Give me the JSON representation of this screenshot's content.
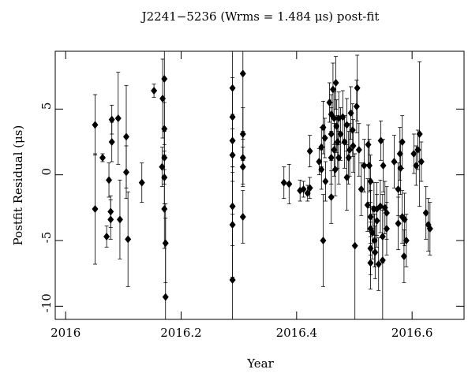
{
  "chart_data": {
    "type": "errorbar-scatter",
    "title": "J2241−5236 (Wrms = 1.484 μs) post-fit",
    "xlabel": "Year",
    "ylabel": "Postfit Residual (μs)",
    "xlim": [
      2015.982,
      2016.69
    ],
    "ylim": [
      -11.0,
      9.4
    ],
    "xticks": [
      2016,
      2016.2,
      2016.4,
      2016.6
    ],
    "yticks": [
      -10,
      -5,
      0,
      5
    ],
    "color": "#000000",
    "x": [
      2016.051,
      2016.051,
      2016.064,
      2016.071,
      2016.075,
      2016.078,
      2016.078,
      2016.08,
      2016.08,
      2016.091,
      2016.094,
      2016.105,
      2016.105,
      2016.108,
      2016.132,
      2016.153,
      2016.167,
      2016.168,
      2016.171,
      2016.171,
      2016.171,
      2016.171,
      2016.171,
      2016.173,
      2016.173,
      2016.289,
      2016.289,
      2016.289,
      2016.289,
      2016.289,
      2016.289,
      2016.289,
      2016.307,
      2016.307,
      2016.307,
      2016.307,
      2016.307,
      2016.378,
      2016.387,
      2016.406,
      2016.412,
      2016.419,
      2016.423,
      2016.423,
      2016.439,
      2016.443,
      2016.443,
      2016.446,
      2016.446,
      2016.449,
      2016.45,
      2016.457,
      2016.46,
      2016.46,
      2016.46,
      2016.46,
      2016.463,
      2016.465,
      2016.465,
      2016.467,
      2016.468,
      2016.469,
      2016.471,
      2016.473,
      2016.473,
      2016.476,
      2016.48,
      2016.483,
      2016.487,
      2016.487,
      2016.49,
      2016.492,
      2016.494,
      2016.497,
      2016.498,
      2016.501,
      2016.504,
      2016.505,
      2016.508,
      2016.512,
      2016.517,
      2016.523,
      2016.524,
      2016.526,
      2016.528,
      2016.528,
      2016.528,
      2016.528,
      2016.528,
      2016.531,
      2016.534,
      2016.535,
      2016.536,
      2016.539,
      2016.539,
      2016.542,
      2016.545,
      2016.546,
      2016.549,
      2016.549,
      2016.55,
      2016.553,
      2016.556,
      2016.556,
      2016.569,
      2016.576,
      2016.576,
      2016.579,
      2016.58,
      2016.583,
      2016.583,
      2016.586,
      2016.587,
      2016.59,
      2016.603,
      2016.607,
      2016.61,
      2016.613,
      2016.616,
      2016.624,
      2016.628,
      2016.631
    ],
    "values": [
      -2.6,
      3.8,
      1.3,
      -4.7,
      -0.4,
      -2.8,
      -3.4,
      4.2,
      2.5,
      4.3,
      -3.4,
      2.9,
      0.2,
      -4.9,
      -0.6,
      6.4,
      0.6,
      5.8,
      7.3,
      3.5,
      1.3,
      -0.2,
      -2.6,
      -5.2,
      -9.3,
      6.6,
      4.4,
      2.6,
      1.5,
      -2.4,
      -3.8,
      -8.0,
      7.7,
      3.1,
      1.3,
      0.6,
      -3.2,
      -0.6,
      -0.7,
      -1.2,
      -1.1,
      -1.4,
      -1.0,
      1.8,
      1.0,
      0.4,
      2.1,
      -5.0,
      3.6,
      2.8,
      -0.5,
      5.5,
      4.6,
      3.1,
      1.3,
      -1.7,
      6.5,
      4.3,
      1.9,
      0.4,
      7.0,
      3.7,
      2.5,
      4.3,
      1.3,
      3.1,
      4.4,
      2.5,
      3.8,
      -0.2,
      1.3,
      1.9,
      4.7,
      3.4,
      2.2,
      -5.4,
      5.2,
      6.6,
      1.9,
      -1.1,
      0.7,
      -2.3,
      2.3,
      0.7,
      -0.5,
      -3.2,
      -4.1,
      -5.6,
      -6.7,
      -4.4,
      -2.6,
      -5.0,
      -5.9,
      -2.6,
      -3.5,
      -6.8,
      -2.4,
      2.6,
      -6.5,
      -4.7,
      0.7,
      -2.5,
      -2.9,
      -4.1,
      1.0,
      -1.1,
      -3.7,
      1.6,
      0.5,
      -3.2,
      2.5,
      -6.2,
      -3.4,
      -5.0,
      1.6,
      0.7,
      1.9,
      3.1,
      1.0,
      -2.9,
      -3.8,
      -4.1
    ],
    "errors": [
      4.2,
      2.3,
      0.3,
      0.8,
      1.3,
      1.2,
      1.5,
      1.1,
      1.5,
      3.5,
      3.0,
      3.9,
      2.0,
      3.6,
      1.5,
      0.5,
      1.5,
      3.0,
      5.0,
      2.0,
      2.0,
      2.0,
      3.0,
      3.0,
      6.0,
      5.0,
      3.0,
      2.0,
      2.0,
      3.0,
      4.0,
      5.0,
      5.0,
      2.0,
      2.0,
      1.5,
      2.0,
      1.2,
      1.5,
      0.8,
      0.6,
      0.6,
      0.8,
      1.2,
      1.0,
      1.5,
      1.5,
      3.5,
      2.0,
      1.5,
      1.5,
      1.5,
      1.5,
      2.0,
      2.0,
      2.0,
      2.0,
      2.0,
      2.0,
      2.0,
      2.0,
      2.0,
      2.0,
      2.0,
      2.0,
      2.0,
      2.0,
      2.0,
      2.0,
      2.5,
      2.0,
      2.0,
      2.0,
      2.0,
      2.0,
      7.0,
      2.0,
      2.5,
      2.0,
      2.0,
      2.0,
      2.0,
      1.5,
      2.0,
      2.0,
      2.0,
      2.0,
      2.0,
      2.0,
      2.0,
      2.0,
      2.0,
      2.0,
      2.0,
      2.0,
      2.0,
      2.0,
      1.5,
      5.0,
      2.0,
      2.0,
      2.0,
      2.0,
      2.0,
      2.0,
      2.0,
      2.0,
      2.0,
      2.0,
      2.0,
      2.0,
      2.0,
      2.0,
      2.0,
      1.5,
      1.5,
      1.5,
      5.5,
      1.5,
      2.0,
      2.0,
      2.0
    ]
  }
}
